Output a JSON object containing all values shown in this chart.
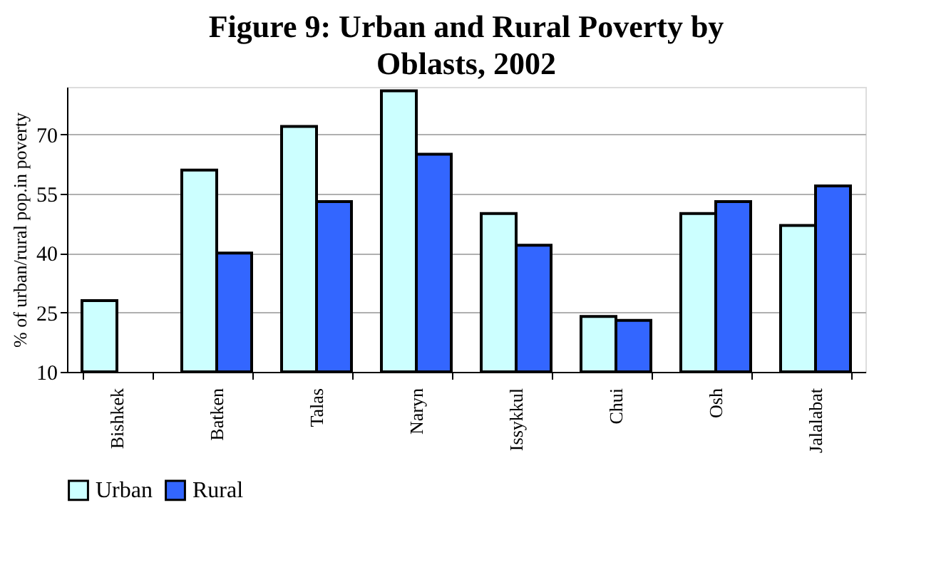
{
  "chart_data": {
    "type": "bar",
    "title": "Figure 9: Urban and Rural Poverty by Oblasts, 2002",
    "ylabel": "% of urban/rural pop.in poverty",
    "categories": [
      "Bishkek",
      "Batken",
      "Talas",
      "Naryn",
      "Issykkul",
      "Chui",
      "Osh",
      "Jalalabat"
    ],
    "series": [
      {
        "name": "Urban",
        "color": "#ccffff",
        "values": [
          28,
          61,
          72,
          81,
          50,
          24,
          50,
          47
        ]
      },
      {
        "name": "Rural",
        "color": "#3366ff",
        "values": [
          null,
          40,
          53,
          65,
          42,
          23,
          53,
          57
        ]
      }
    ],
    "ylim": [
      10,
      82
    ],
    "yticks": [
      10,
      25,
      40,
      55,
      70
    ],
    "grid": "y",
    "legend": "bottom"
  }
}
